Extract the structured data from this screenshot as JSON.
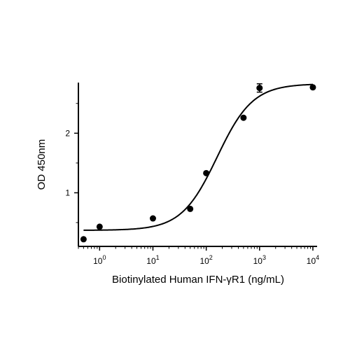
{
  "chart_data": {
    "type": "scatter",
    "xlabel": "Biotinylated Human IFN-γR1 (ng/mL)",
    "ylabel": "OD 450nm",
    "xscale": "log",
    "xlim": [
      0.4,
      12000
    ],
    "ylim": [
      0.1,
      2.85
    ],
    "x_ticks": [
      {
        "base": "10",
        "exp": "0",
        "value": 1
      },
      {
        "base": "10",
        "exp": "1",
        "value": 10
      },
      {
        "base": "10",
        "exp": "2",
        "value": 100
      },
      {
        "base": "10",
        "exp": "3",
        "value": 1000
      },
      {
        "base": "10",
        "exp": "4",
        "value": 10000
      }
    ],
    "y_ticks": [
      {
        "label": "1",
        "value": 1
      },
      {
        "label": "2",
        "value": 2
      }
    ],
    "grid": false,
    "legend": "none",
    "points": [
      {
        "x": 0.5,
        "y": 0.22
      },
      {
        "x": 1,
        "y": 0.43
      },
      {
        "x": 10,
        "y": 0.57
      },
      {
        "x": 50,
        "y": 0.73
      },
      {
        "x": 100,
        "y": 1.33
      },
      {
        "x": 500,
        "y": 2.26
      },
      {
        "x": 1000,
        "y": 2.76,
        "err": 0.07
      },
      {
        "x": 10000,
        "y": 2.77
      }
    ],
    "fit": {
      "model": "4PL",
      "bottom": 0.37,
      "top": 2.83,
      "ec50": 160,
      "hill": 1.3,
      "x_range": [
        0.5,
        10000
      ]
    }
  }
}
